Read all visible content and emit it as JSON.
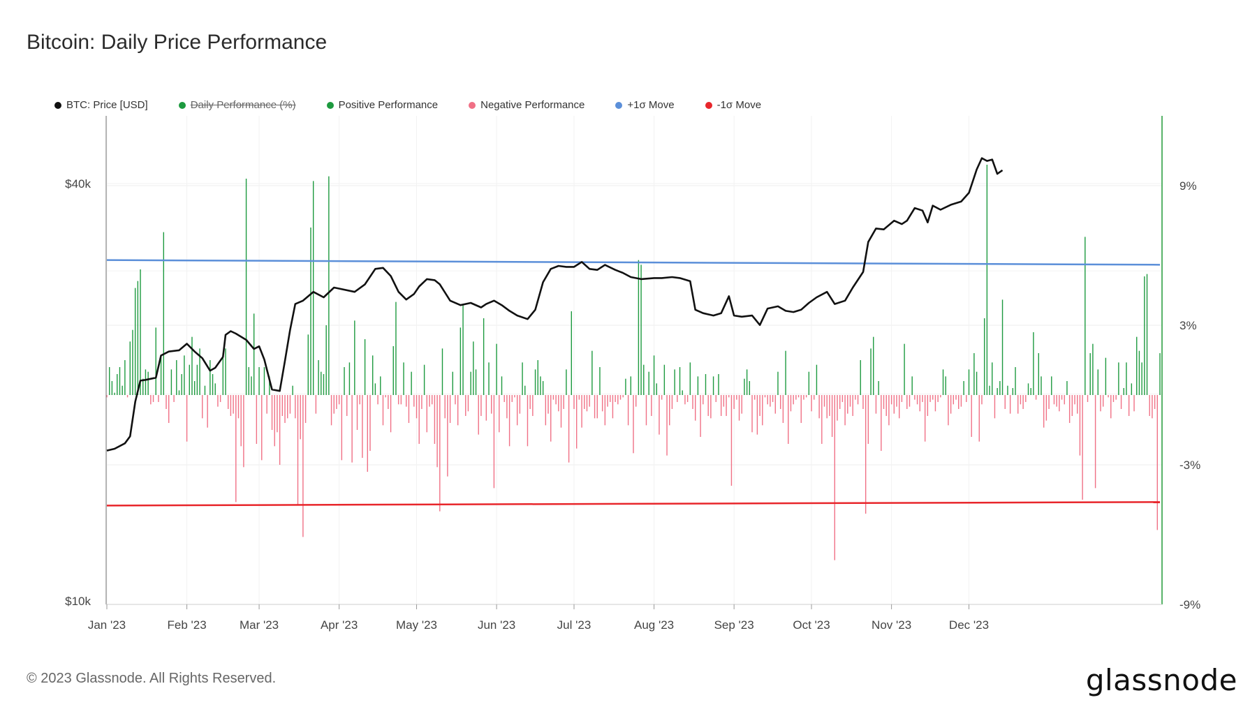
{
  "title": "Bitcoin: Daily Price Performance",
  "footer": "© 2023 Glassnode. All Rights Reserved.",
  "logo": "glassnode",
  "legend": [
    {
      "label": "BTC: Price [USD]",
      "color": "#111111",
      "struck": false
    },
    {
      "label": "Daily Performance (%)",
      "color": "#1d9a3f",
      "struck": true
    },
    {
      "label": "Positive Performance",
      "color": "#1d9a3f",
      "struck": false
    },
    {
      "label": "Negative Performance",
      "color": "#f07085",
      "struck": false
    },
    {
      "label": "+1σ Move",
      "color": "#5b8fd9",
      "struck": false
    },
    {
      "label": "-1σ Move",
      "color": "#e8262b",
      "struck": false
    }
  ],
  "chart_data": {
    "type": "bar",
    "x_ticks": [
      "Jan '23",
      "Feb '23",
      "Mar '23",
      "Apr '23",
      "May '23",
      "Jun '23",
      "Jul '23",
      "Aug '23",
      "Sep '23",
      "Oct '23",
      "Nov '23",
      "Dec '23"
    ],
    "x_tick_days": [
      0,
      31,
      59,
      90,
      120,
      151,
      181,
      212,
      243,
      273,
      304,
      334
    ],
    "y_left_ticks": [
      "$40k",
      "$10k"
    ],
    "y_left_log": true,
    "y_left_range": [
      10000,
      50000
    ],
    "y_right_ticks": [
      "9%",
      "3%",
      "-3%",
      "-9%"
    ],
    "y_right_tick_values": [
      9,
      3,
      -3,
      -9
    ],
    "y_right_range": [
      -9,
      12
    ],
    "colors": {
      "price": "#111111",
      "positive": "#1d9a3f",
      "negative": "#f07085",
      "plus_sigma": "#5b8fd9",
      "minus_sigma": "#e8262b",
      "right_axis": "#2ea043"
    },
    "plus_sigma": [
      5.8,
      5.6
    ],
    "minus_sigma": [
      -4.75,
      -4.6
    ],
    "price": [
      [
        0,
        16600
      ],
      [
        3,
        16700
      ],
      [
        7,
        17000
      ],
      [
        9,
        17400
      ],
      [
        11,
        19500
      ],
      [
        13,
        20900
      ],
      [
        15,
        20950
      ],
      [
        19,
        21100
      ],
      [
        21,
        22700
      ],
      [
        24,
        23000
      ],
      [
        28,
        23100
      ],
      [
        31,
        23600
      ],
      [
        34,
        23000
      ],
      [
        37,
        22500
      ],
      [
        40,
        21600
      ],
      [
        42,
        21800
      ],
      [
        45,
        22600
      ],
      [
        46,
        24300
      ],
      [
        48,
        24600
      ],
      [
        50,
        24400
      ],
      [
        54,
        23900
      ],
      [
        57,
        23200
      ],
      [
        59,
        23400
      ],
      [
        61,
        22400
      ],
      [
        64,
        20300
      ],
      [
        67,
        20200
      ],
      [
        69,
        22300
      ],
      [
        71,
        24700
      ],
      [
        73,
        26900
      ],
      [
        76,
        27200
      ],
      [
        80,
        28000
      ],
      [
        84,
        27500
      ],
      [
        88,
        28400
      ],
      [
        90,
        28300
      ],
      [
        96,
        28000
      ],
      [
        100,
        28700
      ],
      [
        104,
        30200
      ],
      [
        107,
        30300
      ],
      [
        110,
        29500
      ],
      [
        113,
        28000
      ],
      [
        116,
        27300
      ],
      [
        119,
        27800
      ],
      [
        121,
        28500
      ],
      [
        124,
        29200
      ],
      [
        127,
        29100
      ],
      [
        129,
        28700
      ],
      [
        133,
        27200
      ],
      [
        137,
        26800
      ],
      [
        141,
        27000
      ],
      [
        145,
        26600
      ],
      [
        147,
        26900
      ],
      [
        150,
        27200
      ],
      [
        153,
        26800
      ],
      [
        156,
        26300
      ],
      [
        159,
        25900
      ],
      [
        163,
        25600
      ],
      [
        166,
        26400
      ],
      [
        169,
        28900
      ],
      [
        172,
        30200
      ],
      [
        175,
        30500
      ],
      [
        178,
        30400
      ],
      [
        181,
        30400
      ],
      [
        184,
        30900
      ],
      [
        187,
        30200
      ],
      [
        190,
        30100
      ],
      [
        193,
        30600
      ],
      [
        197,
        30100
      ],
      [
        200,
        29800
      ],
      [
        203,
        29400
      ],
      [
        207,
        29200
      ],
      [
        212,
        29300
      ],
      [
        215,
        29300
      ],
      [
        219,
        29400
      ],
      [
        222,
        29300
      ],
      [
        226,
        29000
      ],
      [
        228,
        26400
      ],
      [
        231,
        26100
      ],
      [
        235,
        25900
      ],
      [
        238,
        26100
      ],
      [
        241,
        27600
      ],
      [
        243,
        25900
      ],
      [
        246,
        25800
      ],
      [
        250,
        25900
      ],
      [
        253,
        25100
      ],
      [
        256,
        26500
      ],
      [
        260,
        26700
      ],
      [
        263,
        26300
      ],
      [
        266,
        26200
      ],
      [
        269,
        26400
      ],
      [
        272,
        27000
      ],
      [
        275,
        27500
      ],
      [
        279,
        28000
      ],
      [
        282,
        26900
      ],
      [
        286,
        27200
      ],
      [
        289,
        28400
      ],
      [
        293,
        29900
      ],
      [
        295,
        33000
      ],
      [
        298,
        34500
      ],
      [
        301,
        34400
      ],
      [
        305,
        35400
      ],
      [
        308,
        35000
      ],
      [
        310,
        35400
      ],
      [
        313,
        36900
      ],
      [
        316,
        36600
      ],
      [
        318,
        35200
      ],
      [
        320,
        37200
      ],
      [
        323,
        36700
      ],
      [
        327,
        37300
      ],
      [
        331,
        37700
      ],
      [
        334,
        38800
      ],
      [
        337,
        41900
      ],
      [
        339,
        43500
      ],
      [
        341,
        43100
      ],
      [
        343,
        43300
      ],
      [
        345,
        41300
      ],
      [
        347,
        41800
      ]
    ],
    "perf": [
      -0.1,
      1.2,
      0.6,
      0.1,
      0.9,
      1.2,
      0.4,
      1.5,
      -0.1,
      2.3,
      2.8,
      4.6,
      4.9,
      5.4,
      0.7,
      1.1,
      1.0,
      -0.4,
      -0.3,
      2.9,
      -0.3,
      1.6,
      7.0,
      -0.6,
      -1.2,
      1.1,
      -0.3,
      1.5,
      0.2,
      0.9,
      1.7,
      -2.0,
      1.3,
      2.5,
      0.6,
      1.3,
      2.0,
      -1.0,
      0.4,
      -1.4,
      1.5,
      0.9,
      0.5,
      -0.5,
      -0.3,
      1.8,
      2.0,
      -0.6,
      -0.9,
      -0.8,
      -4.6,
      -1.0,
      -2.2,
      -3.1,
      9.3,
      1.2,
      0.8,
      3.5,
      -2.1,
      1.2,
      -2.8,
      1.2,
      -0.8,
      0.8,
      -1.5,
      -2.2,
      -1.6,
      -3.0,
      -0.9,
      -1.2,
      -1.0,
      -0.8,
      0.4,
      -1.0,
      -4.7,
      -1.9,
      -6.1,
      -1.2,
      2.6,
      7.2,
      9.2,
      -0.8,
      1.5,
      1.0,
      0.9,
      3.0,
      9.4,
      -1.3,
      -0.8,
      -0.6,
      -0.4,
      -2.8,
      1.2,
      -0.9,
      1.4,
      -2.9,
      3.2,
      -1.5,
      -0.4,
      -2.7,
      2.4,
      -3.3,
      -2.4,
      1.7,
      0.5,
      -0.4,
      0.8,
      -1.3,
      -0.1,
      -0.6,
      -1.6,
      2.1,
      4.0,
      -0.4,
      -0.4,
      1.4,
      -0.5,
      -1.2,
      1.0,
      -0.5,
      -1.0,
      -2.1,
      -0.6,
      1.3,
      -1.6,
      -0.5,
      -0.4,
      -2.1,
      -3.1,
      -5.0,
      2.0,
      -1.0,
      -3.5,
      -1.2,
      1.0,
      -0.4,
      -1.3,
      2.9,
      3.9,
      -0.9,
      -0.7,
      1.0,
      2.3,
      1.1,
      -1.7,
      -0.9,
      3.3,
      -1.1,
      1.4,
      -0.8,
      -4.0,
      2.2,
      -1.6,
      0.8,
      -0.3,
      -1.0,
      -2.2,
      -0.3,
      -0.1,
      -1.3,
      -0.8,
      1.4,
      0.4,
      -2.2,
      -0.6,
      -0.9,
      1.1,
      1.5,
      0.8,
      0.6,
      -1.3,
      -0.8,
      -2.0,
      -0.2,
      -0.4,
      -0.7,
      -1.4,
      -0.6,
      1.1,
      -2.9,
      3.6,
      -0.6,
      -2.3,
      -0.2,
      -1.4,
      -0.6,
      -0.7,
      -0.5,
      1.9,
      -1.0,
      -1.0,
      1.2,
      -0.7,
      -1.3,
      -0.5,
      -0.3,
      -1.0,
      -0.3,
      -0.4,
      -0.2,
      -0.1,
      0.7,
      -1.3,
      0.8,
      -2.5,
      -0.5,
      5.8,
      5.6,
      1.3,
      -1.3,
      1.0,
      -0.9,
      1.7,
      0.5,
      -1.7,
      -0.2,
      1.3,
      -2.6,
      -1.3,
      -0.6,
      1.1,
      -0.3,
      1.2,
      0.2,
      -0.4,
      -0.3,
      1.4,
      -0.6,
      -1.1,
      0.8,
      -1.8,
      -0.4,
      0.9,
      -0.9,
      -1.0,
      0.8,
      -0.3,
      0.9,
      -0.9,
      -0.5,
      -0.9,
      -0.1,
      -3.9,
      -0.6,
      -0.2,
      -1.1,
      -0.8,
      0.7,
      1.1,
      0.6,
      -1.6,
      -0.2,
      -1.7,
      -0.9,
      -1.3,
      -0.1,
      -0.4,
      -0.5,
      -0.3,
      -0.8,
      1.0,
      -0.6,
      -1.2,
      1.9,
      -2.1,
      -0.7,
      -0.4,
      -0.2,
      -0.1,
      -1.2,
      -0.2,
      -0.1,
      1.0,
      -0.7,
      -0.2,
      1.3,
      -1.0,
      -2.1,
      -0.5,
      -1.0,
      -0.9,
      -1.8,
      -7.1,
      -1.1,
      -0.6,
      -0.3,
      -1.3,
      -0.8,
      -0.5,
      -0.9,
      -0.2,
      -0.4,
      1.5,
      -0.6,
      -5.1,
      -2.1,
      2.0,
      2.5,
      -0.8,
      0.6,
      -2.4,
      -0.6,
      -0.9,
      -1.3,
      -0.4,
      -0.8,
      -0.5,
      -1.0,
      -0.3,
      2.2,
      -0.6,
      -0.5,
      0.8,
      -0.2,
      -0.4,
      -0.7,
      -0.3,
      -2.0,
      -0.9,
      -0.3,
      -0.2,
      -0.7,
      -0.3,
      -0.1,
      1.1,
      0.8,
      -1.3,
      -0.8,
      -0.4,
      -0.2,
      -0.6,
      -0.5,
      0.6,
      -0.3,
      1.1,
      -1.8,
      1.8,
      1.0,
      -2.0,
      -0.4,
      3.3,
      9.9,
      0.4,
      1.4,
      -1.0,
      0.3,
      0.6,
      4.1,
      -0.6,
      0.4,
      -0.8,
      0.3,
      1.2,
      -0.8,
      -0.4,
      -0.6,
      -0.3,
      0.5,
      0.3,
      2.7,
      -0.2,
      1.8,
      0.8,
      -1.4,
      -1.1,
      -0.6,
      0.8,
      -0.4,
      -0.5,
      -0.7,
      -0.2,
      -0.4,
      0.6,
      -1.2,
      -0.9,
      -0.4,
      -0.8,
      -2.6,
      -4.5,
      6.8,
      -0.3,
      1.8,
      2.2,
      -4.0,
      1.1,
      -0.7,
      -0.5,
      1.6,
      -0.1,
      -1.0,
      -0.3,
      -0.2,
      1.4,
      -0.6,
      0.3,
      1.4,
      -0.9,
      0.5,
      -0.7,
      2.5,
      1.9,
      1.4,
      5.1,
      5.2,
      -0.9,
      -1.0,
      -0.6,
      -5.8,
      1.8
    ]
  }
}
